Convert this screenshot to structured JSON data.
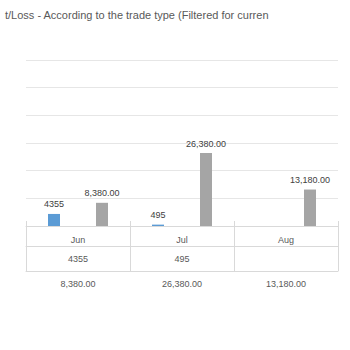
{
  "chart_data": {
    "type": "bar",
    "title": "t/Loss - According to the trade type (Filtered for curren",
    "categories": [
      "Jun",
      "Jul",
      "Aug"
    ],
    "series": [
      {
        "color": "#5b9bd5",
        "values": [
          4355,
          495,
          null
        ]
      },
      {
        "color": "#a5a5a5",
        "values": [
          8380,
          26380,
          13180
        ],
        "value_labels": [
          "8,380.00",
          "26,380.00",
          "13,180.00"
        ]
      }
    ],
    "ylim": [
      0,
      60000
    ],
    "yticks": [
      0,
      10000,
      20000,
      30000,
      40000,
      50000,
      60000
    ],
    "grid": true,
    "data_labels": true,
    "tick_labels": "x"
  }
}
